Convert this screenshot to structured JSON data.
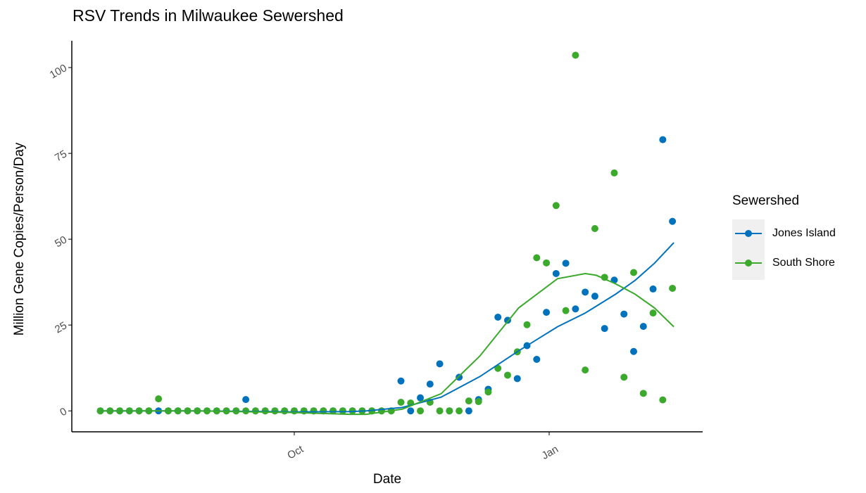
{
  "chart_data": {
    "type": "scatter-smooth",
    "title": "RSV Trends in Milwaukee Sewershed",
    "x_label": "Date",
    "y_label": "Million Gene Copies/Person/Day",
    "legend_title": "Sewershed",
    "xlim": [
      -80.3,
      147.4
    ],
    "xticks": [
      {
        "value": 0,
        "label": "Oct"
      },
      {
        "value": 92,
        "label": "Jan"
      }
    ],
    "ylim": [
      -6.1,
      107.8
    ],
    "yticks": [
      0,
      25,
      50,
      75,
      100
    ],
    "x": [
      -70,
      -66.5,
      -63,
      -59.5,
      -56,
      -52.5,
      -49,
      -45.5,
      -42,
      -38.5,
      -35,
      -31.5,
      -28,
      -24.5,
      -21,
      -17.5,
      -14,
      -10.5,
      -7,
      -3.5,
      0,
      3.5,
      7,
      10.5,
      14,
      17.5,
      21,
      24.5,
      28,
      31.5,
      35,
      38.5,
      42,
      45.5,
      49,
      52.5,
      56,
      59.5,
      63,
      66.5,
      70,
      73.5,
      77,
      80.5,
      84,
      87.5,
      91,
      94.5,
      98,
      101.5,
      105,
      108.5,
      112,
      115.5,
      119,
      122.5,
      126,
      129.5,
      133,
      136.5
    ],
    "trend_x": [
      -70,
      -35,
      0,
      20,
      26,
      39,
      53,
      67,
      81,
      95,
      105,
      109,
      116,
      123,
      130,
      137
    ],
    "series": [
      {
        "name": "Jones Island",
        "color": "#0072bd",
        "values": [
          0,
          0,
          0,
          0,
          0,
          0,
          0,
          0,
          0,
          0,
          0,
          0,
          0,
          0,
          0,
          3.3,
          0,
          0,
          0,
          0,
          0,
          0,
          0,
          0,
          0,
          0,
          0,
          0,
          0,
          0,
          0,
          8.7,
          0,
          3.8,
          7.8,
          13.7,
          0,
          9.8,
          0,
          3.3,
          6.3,
          27.3,
          26.4,
          9.4,
          19,
          15,
          28.7,
          40,
          43,
          29.7,
          34.6,
          33.4,
          24,
          38.1,
          28.2,
          17.3,
          24.6,
          35.5,
          79,
          55.2
        ],
        "trend": [
          0,
          0,
          -0.3,
          -0.2,
          0,
          1,
          4,
          10,
          17.5,
          24.5,
          28.5,
          30.5,
          34,
          38,
          43,
          49
        ]
      },
      {
        "name": "South Shore",
        "color": "#3ba92c",
        "values": [
          0,
          0,
          0,
          0,
          0,
          0,
          3.5,
          0,
          0,
          0,
          0,
          0,
          0,
          0,
          0,
          0,
          0,
          0,
          0,
          0,
          0,
          0,
          0,
          0,
          0,
          0,
          0,
          0,
          0,
          0,
          0,
          2.5,
          2.3,
          0,
          2.5,
          0,
          0,
          0,
          2.9,
          2.7,
          5.5,
          12.4,
          10.4,
          17.2,
          25.1,
          44.6,
          43.1,
          59.8,
          29.2,
          103.6,
          11.9,
          53.1,
          38.9,
          69.3,
          9.8,
          40.3,
          5.1,
          28.5,
          3.2,
          35.7
        ],
        "trend": [
          0,
          0,
          -0.5,
          -1,
          -1,
          0.5,
          5,
          16,
          30,
          38.5,
          40,
          39.5,
          37,
          34,
          30,
          24.5
        ]
      }
    ]
  }
}
